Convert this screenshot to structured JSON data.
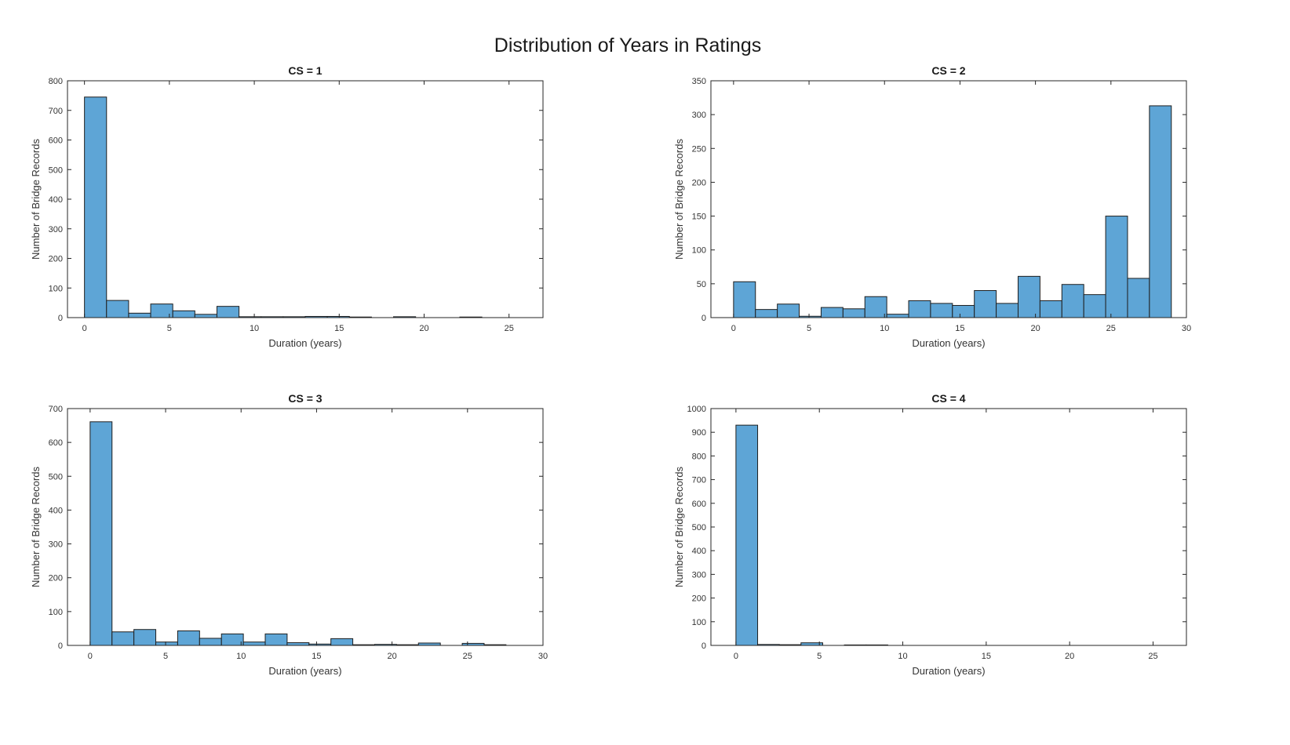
{
  "figure": {
    "title": "Distribution of Years in Ratings"
  },
  "colors": {
    "bar_fill": "#5EA5D6",
    "bar_edge": "#1f1f1f",
    "axis": "#262626"
  },
  "chart_data": [
    {
      "type": "bar",
      "title": "CS = 1",
      "xlabel": "Duration (years)",
      "ylabel": "Number of Bridge Records",
      "xlim": [
        -1,
        27
      ],
      "ylim": [
        0,
        800
      ],
      "xticks": [
        0,
        5,
        10,
        15,
        20,
        25
      ],
      "yticks": [
        0,
        100,
        200,
        300,
        400,
        500,
        600,
        700,
        800
      ],
      "bin_width": 1.3,
      "bin_start": 0,
      "values": [
        745,
        58,
        15,
        46,
        23,
        11,
        38,
        3,
        3,
        3,
        4,
        4,
        2,
        0,
        3,
        0,
        0,
        2,
        0,
        0
      ],
      "grid": false,
      "legend": "none"
    },
    {
      "type": "bar",
      "title": "CS = 2",
      "xlabel": "Duration (years)",
      "ylabel": "Number of Bridge Records",
      "xlim": [
        -1.5,
        30
      ],
      "ylim": [
        0,
        350
      ],
      "xticks": [
        0,
        5,
        10,
        15,
        20,
        25,
        30
      ],
      "yticks": [
        0,
        50,
        100,
        150,
        200,
        250,
        300,
        350
      ],
      "bin_width": 1.45,
      "bin_start": 0,
      "values": [
        53,
        12,
        20,
        2,
        15,
        13,
        31,
        5,
        25,
        21,
        18,
        40,
        21,
        61,
        25,
        49,
        34,
        150,
        58,
        313
      ],
      "grid": false,
      "legend": "none"
    },
    {
      "type": "bar",
      "title": "CS = 3",
      "xlabel": "Duration (years)",
      "ylabel": "Number of Bridge Records",
      "xlim": [
        -1.5,
        30
      ],
      "ylim": [
        0,
        700
      ],
      "xticks": [
        0,
        5,
        10,
        15,
        20,
        25,
        30
      ],
      "yticks": [
        0,
        100,
        200,
        300,
        400,
        500,
        600,
        700
      ],
      "bin_width": 1.45,
      "bin_start": 0,
      "values": [
        661,
        40,
        47,
        10,
        43,
        21,
        34,
        10,
        34,
        8,
        4,
        20,
        2,
        3,
        2,
        7,
        0,
        6,
        2,
        0
      ],
      "grid": false,
      "legend": "none"
    },
    {
      "type": "bar",
      "title": "CS = 4",
      "xlabel": "Duration (years)",
      "ylabel": "Number of Bridge Records",
      "xlim": [
        -1.5,
        27
      ],
      "ylim": [
        0,
        1000
      ],
      "xticks": [
        0,
        5,
        10,
        15,
        20,
        25
      ],
      "yticks": [
        0,
        100,
        200,
        300,
        400,
        500,
        600,
        700,
        800,
        900,
        1000
      ],
      "bin_width": 1.3,
      "bin_start": 0,
      "values": [
        930,
        4,
        3,
        11,
        0,
        2,
        2,
        0,
        0,
        0,
        0,
        0,
        0,
        0,
        0,
        0,
        0,
        0,
        0,
        0
      ],
      "grid": false,
      "legend": "none"
    }
  ]
}
